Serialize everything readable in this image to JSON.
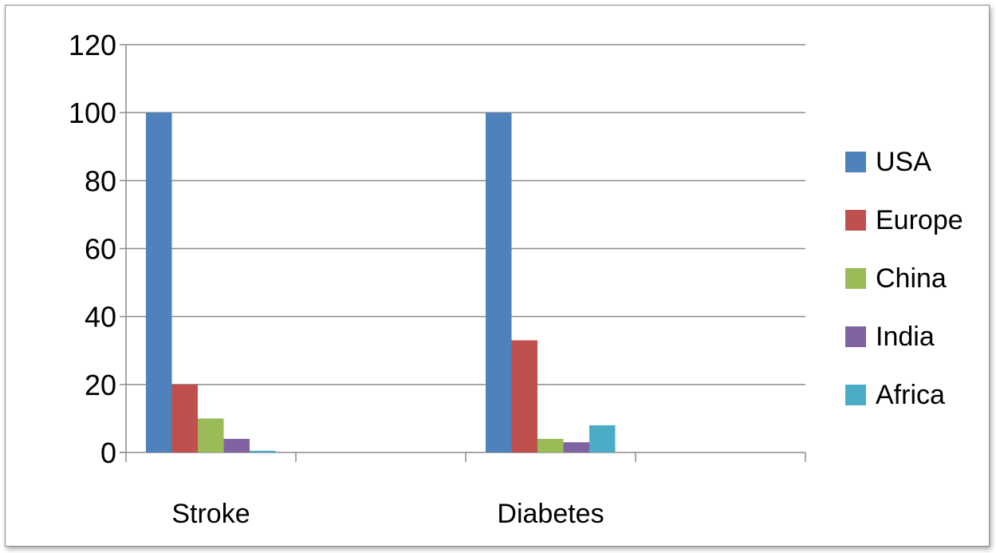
{
  "chart_data": {
    "type": "bar",
    "title": "",
    "xlabel": "",
    "ylabel": "",
    "categories": [
      "Stroke",
      "Diabetes"
    ],
    "ylim": [
      0,
      120
    ],
    "yticks": [
      0,
      20,
      40,
      60,
      80,
      100,
      120
    ],
    "yticks_text": [
      "0",
      "20",
      "40",
      "60",
      "80",
      "100",
      "120"
    ],
    "grid": true,
    "legend_position": "right",
    "series": [
      {
        "name": "USA",
        "color": "#4F81BD",
        "values": [
          100,
          100
        ]
      },
      {
        "name": "Europe",
        "color": "#C0504D",
        "values": [
          20,
          33
        ]
      },
      {
        "name": "China",
        "color": "#9BBB59",
        "values": [
          10,
          4
        ]
      },
      {
        "name": "India",
        "color": "#8064A2",
        "values": [
          4,
          3
        ]
      },
      {
        "name": "Africa",
        "color": "#4BACC6",
        "values": [
          0.5,
          8
        ]
      }
    ]
  }
}
